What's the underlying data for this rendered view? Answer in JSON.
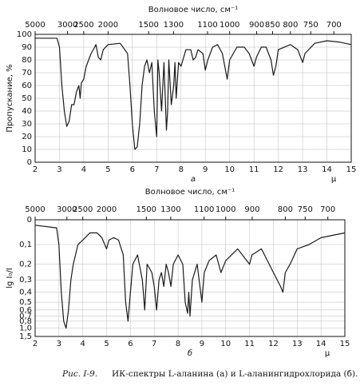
{
  "chart_data": [
    {
      "type": "line",
      "x2label": "Волновое число, см⁻¹",
      "ylabel": "Пропускание, %",
      "xlabel": "μ",
      "panel": "а",
      "x": [
        2.0,
        2.9,
        3.0,
        3.1,
        3.2,
        3.3,
        3.4,
        3.5,
        3.6,
        3.7,
        3.8,
        3.85,
        3.9,
        4.0,
        4.1,
        4.3,
        4.45,
        4.5,
        4.6,
        4.7,
        4.8,
        5.0,
        5.5,
        5.8,
        5.9,
        6.0,
        6.1,
        6.2,
        6.3,
        6.4,
        6.5,
        6.6,
        6.7,
        6.8,
        6.9,
        7.0,
        7.05,
        7.1,
        7.2,
        7.3,
        7.4,
        7.45,
        7.5,
        7.6,
        7.7,
        7.75,
        7.8,
        7.9,
        8.0,
        8.2,
        8.4,
        8.5,
        8.6,
        8.7,
        8.9,
        9.0,
        9.1,
        9.3,
        9.5,
        9.7,
        9.8,
        9.9,
        10.0,
        10.3,
        10.6,
        10.8,
        11.0,
        11.1,
        11.3,
        11.5,
        11.7,
        11.8,
        11.9,
        12.0,
        12.5,
        12.8,
        13.0,
        13.1,
        13.5,
        14.0,
        14.5,
        15.0
      ],
      "values": [
        97,
        97,
        90,
        60,
        40,
        28,
        32,
        45,
        45,
        55,
        60,
        50,
        62,
        65,
        75,
        85,
        90,
        92,
        82,
        80,
        88,
        92,
        93,
        85,
        60,
        30,
        10,
        12,
        30,
        60,
        75,
        80,
        70,
        78,
        40,
        20,
        80,
        70,
        40,
        78,
        25,
        40,
        80,
        45,
        60,
        78,
        50,
        78,
        75,
        88,
        88,
        80,
        82,
        88,
        85,
        72,
        80,
        90,
        92,
        85,
        75,
        65,
        80,
        90,
        90,
        85,
        75,
        82,
        90,
        90,
        80,
        68,
        75,
        88,
        92,
        88,
        78,
        85,
        93,
        95,
        94,
        92
      ],
      "color": "#1a1a1a",
      "xlim": [
        2,
        15
      ],
      "xticks": [
        2,
        3,
        4,
        5,
        6,
        7,
        8,
        9,
        10,
        11,
        12,
        13,
        14,
        15
      ],
      "x2lim": [
        5000,
        666.7
      ],
      "x2scale": "reciprocal",
      "x2ticks": [
        5000,
        3000,
        2500,
        2000,
        1500,
        1300,
        1100,
        1000,
        900,
        850,
        800,
        750,
        700
      ],
      "ylim": [
        0,
        100
      ],
      "yticks": [
        0,
        10,
        20,
        30,
        40,
        50,
        60,
        70,
        80,
        90,
        100
      ],
      "grid": true
    },
    {
      "type": "line",
      "x2label": "Волновое число, см⁻¹",
      "ylabel": "lg I₀/I",
      "xlabel": "μ",
      "panel": "б",
      "x": [
        2.0,
        2.9,
        3.0,
        3.1,
        3.2,
        3.3,
        3.4,
        3.5,
        3.6,
        3.8,
        4.0,
        4.3,
        4.6,
        4.8,
        5.0,
        5.1,
        5.3,
        5.5,
        5.7,
        5.8,
        5.9,
        6.0,
        6.1,
        6.3,
        6.5,
        6.6,
        6.7,
        6.9,
        7.0,
        7.1,
        7.2,
        7.3,
        7.4,
        7.5,
        7.6,
        7.7,
        7.8,
        8.0,
        8.2,
        8.3,
        8.4,
        8.45,
        8.5,
        8.6,
        8.8,
        9.0,
        9.1,
        9.3,
        9.6,
        9.8,
        10.0,
        10.5,
        11.0,
        11.1,
        11.5,
        12.0,
        12.3,
        12.4,
        12.5,
        12.7,
        13.0,
        13.5,
        14.0,
        15.0
      ],
      "values": [
        0.02,
        0.03,
        0.1,
        0.4,
        0.8,
        1.0,
        0.6,
        0.3,
        0.2,
        0.1,
        0.08,
        0.05,
        0.05,
        0.07,
        0.12,
        0.08,
        0.07,
        0.08,
        0.15,
        0.5,
        0.8,
        0.4,
        0.2,
        0.15,
        0.3,
        0.6,
        0.2,
        0.25,
        0.35,
        0.6,
        0.3,
        0.25,
        0.35,
        0.2,
        0.25,
        0.35,
        0.2,
        0.15,
        0.2,
        0.5,
        0.65,
        0.4,
        0.7,
        0.3,
        0.2,
        0.5,
        0.25,
        0.18,
        0.15,
        0.25,
        0.18,
        0.12,
        0.2,
        0.15,
        0.12,
        0.25,
        0.35,
        0.4,
        0.25,
        0.2,
        0.12,
        0.1,
        0.07,
        0.05
      ],
      "color": "#1a1a1a",
      "xlim": [
        2,
        15
      ],
      "xticks": [
        2,
        3,
        4,
        5,
        6,
        7,
        8,
        9,
        10,
        11,
        12,
        13,
        14,
        15
      ],
      "x2lim": [
        5000,
        666.7
      ],
      "x2scale": "reciprocal",
      "x2ticks": [
        5000,
        3000,
        2500,
        2000,
        1500,
        1300,
        1100,
        1000,
        900,
        800,
        750,
        700
      ],
      "ylim": [
        0,
        1.5
      ],
      "yscale": "transmittance",
      "yticks": [
        0,
        {
          "value": 0.1,
          "label": "0,1"
        },
        {
          "value": 0.2,
          "label": "0,2"
        },
        {
          "value": 0.3,
          "label": "0,3"
        },
        {
          "value": 0.4,
          "label": "0,4"
        },
        {
          "value": 0.5,
          "label": "0,5"
        },
        {
          "value": 0.6,
          "label": "0,6"
        },
        {
          "value": 0.7,
          "label": "0,7"
        },
        {
          "value": 0.8,
          "label": "0,8"
        },
        {
          "value": 1.0,
          "label": "1,0"
        },
        {
          "value": 1.5,
          "label": "1,5"
        }
      ],
      "grid": true
    }
  ],
  "caption": {
    "label": "Рис. I-9.",
    "text": "ИК-спектры L-аланина (а) и L-аланингидрохлорида (б)."
  }
}
